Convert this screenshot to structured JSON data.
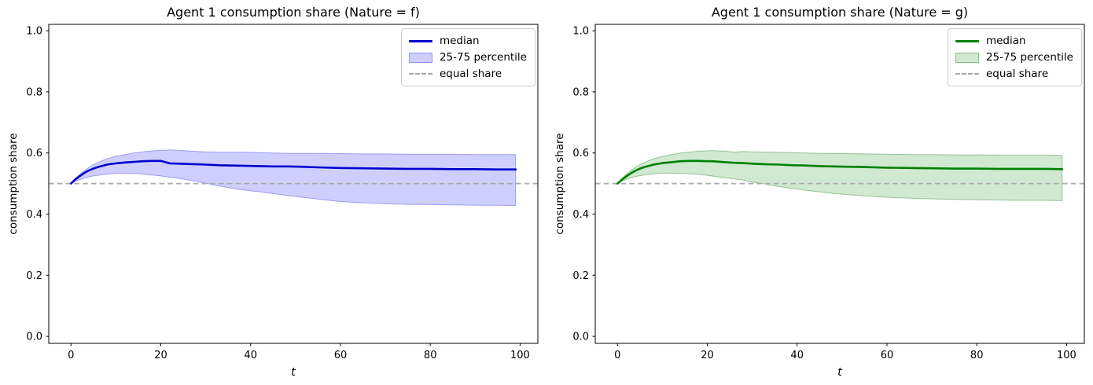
{
  "figure_background": "#ffffff",
  "chart_data": [
    {
      "type": "line",
      "title": "Agent 1 consumption share (Nature = f)",
      "xlabel": "t",
      "ylabel": "consumption share",
      "xlim": [
        -4.95,
        103.95
      ],
      "ylim": [
        -0.023,
        1.021
      ],
      "xticks": [
        0,
        20,
        40,
        60,
        80,
        100
      ],
      "yticks": [
        0.0,
        0.2,
        0.4,
        0.6,
        0.8,
        1.0
      ],
      "ytick_labels": [
        "0.0",
        "0.2",
        "0.4",
        "0.6",
        "0.8",
        "1.0"
      ],
      "grid": false,
      "legend_position": "upper right",
      "legend": [
        {
          "label": "median",
          "swatch": "line"
        },
        {
          "label": "25-75 percentile",
          "swatch": "patch"
        },
        {
          "label": "equal share",
          "swatch": "dashed"
        }
      ],
      "colors": {
        "median": "#0000cd",
        "band_fill": "rgba(0,0,255,0.19)",
        "band_edge": "rgba(70,70,235,0.45)",
        "equal_share": "#ababab"
      },
      "equal_share_value": 0.5,
      "t": [
        0,
        1,
        2,
        3,
        4,
        5,
        6,
        8,
        10,
        12,
        14,
        16,
        18,
        20,
        21,
        22,
        24,
        26,
        28,
        30,
        33,
        36,
        39,
        42,
        45,
        48,
        51,
        55,
        60,
        65,
        70,
        75,
        80,
        85,
        90,
        95,
        99
      ],
      "series": [
        {
          "name": "median",
          "values": [
            0.5,
            0.514,
            0.525,
            0.535,
            0.543,
            0.549,
            0.554,
            0.562,
            0.566,
            0.569,
            0.571,
            0.573,
            0.574,
            0.574,
            0.57,
            0.566,
            0.565,
            0.564,
            0.563,
            0.562,
            0.56,
            0.559,
            0.558,
            0.557,
            0.556,
            0.556,
            0.555,
            0.553,
            0.551,
            0.55,
            0.549,
            0.548,
            0.548,
            0.547,
            0.547,
            0.546,
            0.546
          ]
        },
        {
          "name": "p75",
          "values": [
            0.5,
            0.517,
            0.531,
            0.543,
            0.553,
            0.562,
            0.569,
            0.581,
            0.589,
            0.595,
            0.6,
            0.604,
            0.607,
            0.609,
            0.609,
            0.61,
            0.609,
            0.607,
            0.605,
            0.604,
            0.603,
            0.602,
            0.603,
            0.601,
            0.6,
            0.599,
            0.599,
            0.599,
            0.598,
            0.597,
            0.597,
            0.596,
            0.596,
            0.596,
            0.595,
            0.595,
            0.595
          ]
        },
        {
          "name": "p25",
          "values": [
            0.5,
            0.508,
            0.513,
            0.518,
            0.522,
            0.525,
            0.527,
            0.531,
            0.533,
            0.534,
            0.533,
            0.531,
            0.528,
            0.525,
            0.523,
            0.521,
            0.517,
            0.512,
            0.507,
            0.501,
            0.492,
            0.484,
            0.478,
            0.473,
            0.467,
            0.461,
            0.456,
            0.449,
            0.441,
            0.437,
            0.434,
            0.432,
            0.431,
            0.43,
            0.429,
            0.429,
            0.428
          ]
        }
      ]
    },
    {
      "type": "line",
      "title": "Agent 1 consumption share (Nature = g)",
      "xlabel": "t",
      "ylabel": "consumption share",
      "xlim": [
        -4.95,
        103.95
      ],
      "ylim": [
        -0.023,
        1.021
      ],
      "xticks": [
        0,
        20,
        40,
        60,
        80,
        100
      ],
      "yticks": [
        0.0,
        0.2,
        0.4,
        0.6,
        0.8,
        1.0
      ],
      "ytick_labels": [
        "0.0",
        "0.2",
        "0.4",
        "0.6",
        "0.8",
        "1.0"
      ],
      "grid": false,
      "legend_position": "upper right",
      "legend": [
        {
          "label": "median",
          "swatch": "line"
        },
        {
          "label": "25-75 percentile",
          "swatch": "patch"
        },
        {
          "label": "equal share",
          "swatch": "dashed"
        }
      ],
      "colors": {
        "median": "#008000",
        "band_fill": "rgba(0,128,0,0.18)",
        "band_edge": "rgba(50,140,50,0.45)",
        "equal_share": "#ababab"
      },
      "equal_share_value": 0.5,
      "t": [
        0,
        1,
        2,
        3,
        4,
        5,
        6,
        8,
        10,
        12,
        14,
        16,
        18,
        20,
        21,
        22,
        24,
        26,
        28,
        30,
        33,
        36,
        39,
        42,
        45,
        48,
        51,
        55,
        60,
        65,
        70,
        75,
        80,
        85,
        90,
        95,
        99
      ],
      "series": [
        {
          "name": "median",
          "values": [
            0.5,
            0.513,
            0.524,
            0.534,
            0.542,
            0.549,
            0.554,
            0.562,
            0.567,
            0.57,
            0.573,
            0.574,
            0.574,
            0.573,
            0.573,
            0.572,
            0.57,
            0.568,
            0.567,
            0.565,
            0.563,
            0.562,
            0.56,
            0.559,
            0.557,
            0.556,
            0.555,
            0.554,
            0.552,
            0.551,
            0.55,
            0.549,
            0.549,
            0.548,
            0.548,
            0.548,
            0.547
          ]
        },
        {
          "name": "p75",
          "values": [
            0.5,
            0.517,
            0.531,
            0.543,
            0.553,
            0.562,
            0.569,
            0.581,
            0.589,
            0.595,
            0.6,
            0.603,
            0.606,
            0.607,
            0.608,
            0.607,
            0.606,
            0.603,
            0.605,
            0.604,
            0.603,
            0.602,
            0.601,
            0.6,
            0.599,
            0.598,
            0.598,
            0.597,
            0.596,
            0.595,
            0.595,
            0.594,
            0.594,
            0.593,
            0.593,
            0.593,
            0.592
          ]
        },
        {
          "name": "p25",
          "values": [
            0.5,
            0.508,
            0.514,
            0.519,
            0.523,
            0.526,
            0.528,
            0.532,
            0.534,
            0.534,
            0.533,
            0.532,
            0.53,
            0.527,
            0.525,
            0.523,
            0.519,
            0.515,
            0.511,
            0.505,
            0.498,
            0.49,
            0.484,
            0.478,
            0.473,
            0.468,
            0.464,
            0.46,
            0.455,
            0.452,
            0.45,
            0.448,
            0.447,
            0.446,
            0.445,
            0.445,
            0.444
          ]
        }
      ]
    }
  ]
}
